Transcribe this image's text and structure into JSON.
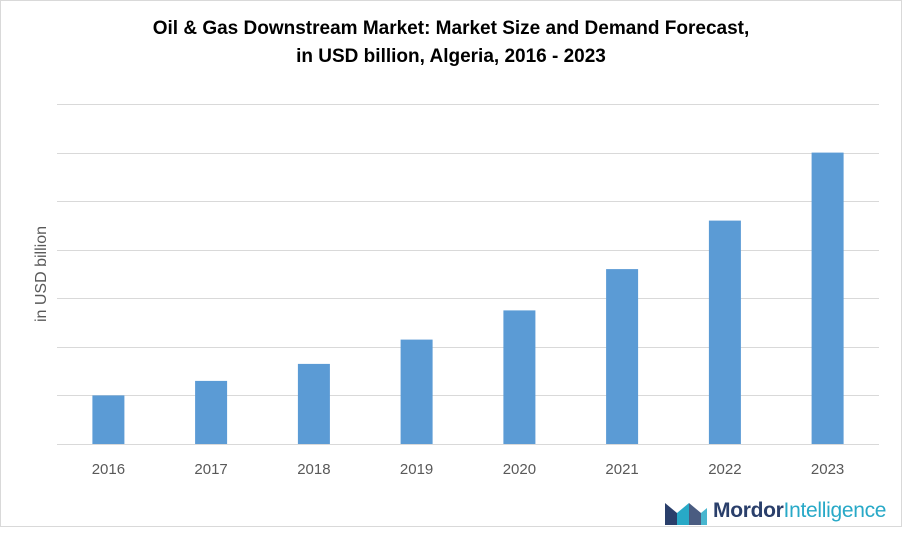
{
  "chart_data": {
    "type": "bar",
    "title_line1": "Oil & Gas Downstream Market: Market Size and Demand Forecast,",
    "title_line2": "in USD billion,  Algeria, 2016 - 2023",
    "xlabel": "",
    "ylabel": "in USD billion",
    "categories": [
      "2016",
      "2017",
      "2018",
      "2019",
      "2020",
      "2021",
      "2022",
      "2023"
    ],
    "values": [
      1.0,
      1.3,
      1.65,
      2.15,
      2.75,
      3.6,
      4.6,
      6.0
    ],
    "ylim": [
      0,
      7
    ],
    "yticks_visible": false,
    "grid": true,
    "bar_color": "#5b9bd5",
    "grid_color": "#d9d9d9"
  },
  "brand": {
    "name_part1": "Mordor",
    "name_part2": "Intelligence",
    "colors": {
      "dark": "#2a3f6b",
      "accent": "#28a9c7"
    }
  }
}
